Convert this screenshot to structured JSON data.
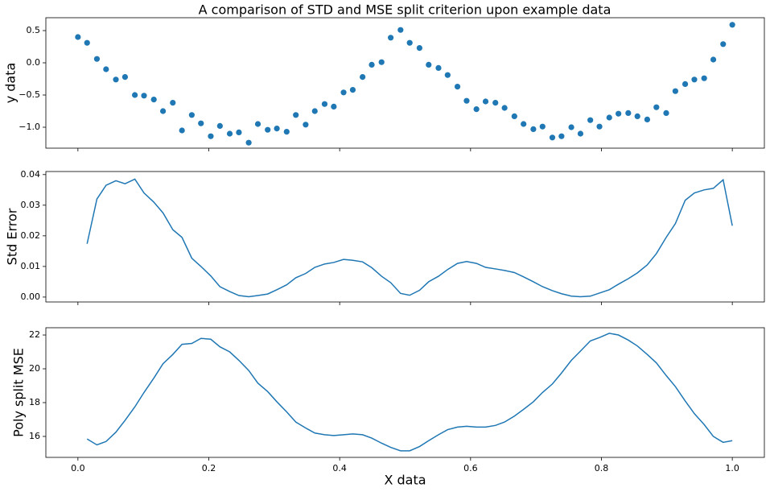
{
  "chart_data": [
    {
      "type": "scatter",
      "title": "A comparison of STD and MSE split criterion upon example data",
      "ylabel": "y data",
      "color": "#1f77b4",
      "x": [
        0,
        0.014,
        0.029,
        0.043,
        0.058,
        0.072,
        0.087,
        0.101,
        0.116,
        0.13,
        0.145,
        0.159,
        0.174,
        0.188,
        0.203,
        0.217,
        0.232,
        0.246,
        0.261,
        0.275,
        0.29,
        0.304,
        0.319,
        0.333,
        0.348,
        0.362,
        0.377,
        0.391,
        0.406,
        0.42,
        0.435,
        0.449,
        0.464,
        0.478,
        0.493,
        0.507,
        0.522,
        0.536,
        0.551,
        0.565,
        0.58,
        0.594,
        0.609,
        0.623,
        0.638,
        0.652,
        0.667,
        0.681,
        0.696,
        0.71,
        0.725,
        0.739,
        0.754,
        0.768,
        0.783,
        0.797,
        0.812,
        0.826,
        0.841,
        0.855,
        0.87,
        0.884,
        0.899,
        0.913,
        0.928,
        0.942,
        0.957,
        0.971,
        0.986,
        1.0
      ],
      "values": [
        0.4,
        0.31,
        0.06,
        -0.1,
        -0.26,
        -0.22,
        -0.5,
        -0.51,
        -0.57,
        -0.75,
        -0.62,
        -1.05,
        -0.81,
        -0.94,
        -1.14,
        -0.98,
        -1.1,
        -1.08,
        -1.24,
        -0.95,
        -1.04,
        -1.02,
        -1.07,
        -0.81,
        -0.96,
        -0.75,
        -0.64,
        -0.68,
        -0.46,
        -0.42,
        -0.22,
        -0.03,
        0.01,
        0.39,
        0.51,
        0.31,
        0.23,
        -0.03,
        -0.08,
        -0.19,
        -0.37,
        -0.59,
        -0.72,
        -0.6,
        -0.62,
        -0.7,
        -0.83,
        -0.95,
        -1.03,
        -0.99,
        -1.16,
        -1.14,
        -1.0,
        -1.1,
        -0.89,
        -0.99,
        -0.85,
        -0.79,
        -0.78,
        -0.83,
        -0.88,
        -0.69,
        -0.78,
        -0.44,
        -0.33,
        -0.26,
        -0.24,
        0.05,
        0.29,
        0.59
      ],
      "xlim": [
        -0.049,
        1.049
      ],
      "ylim": [
        -1.325,
        0.7
      ],
      "yticks": [
        {
          "value": -1.0,
          "label": "−1.0"
        },
        {
          "value": -0.5,
          "label": "−0.5"
        },
        {
          "value": 0,
          "label": "0.0"
        },
        0.5
      ]
    },
    {
      "type": "line",
      "ylabel": "Std Error",
      "color": "#1f77b4",
      "x": [
        0.014,
        0.029,
        0.043,
        0.058,
        0.072,
        0.087,
        0.101,
        0.116,
        0.13,
        0.145,
        0.159,
        0.174,
        0.188,
        0.203,
        0.217,
        0.232,
        0.246,
        0.261,
        0.275,
        0.29,
        0.304,
        0.319,
        0.333,
        0.348,
        0.362,
        0.377,
        0.391,
        0.406,
        0.42,
        0.435,
        0.449,
        0.464,
        0.478,
        0.493,
        0.507,
        0.522,
        0.536,
        0.551,
        0.565,
        0.58,
        0.594,
        0.609,
        0.623,
        0.638,
        0.652,
        0.667,
        0.681,
        0.696,
        0.71,
        0.725,
        0.739,
        0.754,
        0.768,
        0.783,
        0.797,
        0.812,
        0.826,
        0.841,
        0.855,
        0.87,
        0.884,
        0.899,
        0.913,
        0.928,
        0.942,
        0.957,
        0.971,
        0.986,
        1.0
      ],
      "values": [
        0.0174,
        0.032,
        0.0365,
        0.038,
        0.037,
        0.0385,
        0.034,
        0.031,
        0.0275,
        0.022,
        0.0195,
        0.0127,
        0.01,
        0.0069,
        0.0034,
        0.0018,
        0.0005,
        0.0001,
        0.0005,
        0.001,
        0.0024,
        0.004,
        0.0063,
        0.0077,
        0.0097,
        0.0108,
        0.0113,
        0.0123,
        0.012,
        0.0115,
        0.0096,
        0.0068,
        0.0047,
        0.0012,
        0.0006,
        0.0022,
        0.005,
        0.0068,
        0.009,
        0.011,
        0.0116,
        0.011,
        0.0097,
        0.0092,
        0.0087,
        0.008,
        0.0066,
        0.005,
        0.0034,
        0.0021,
        0.0011,
        0.0003,
        0.0001,
        0.0003,
        0.0013,
        0.0024,
        0.0042,
        0.006,
        0.0079,
        0.0105,
        0.0142,
        0.0195,
        0.024,
        0.0316,
        0.034,
        0.035,
        0.0355,
        0.0383,
        0.0233
      ],
      "xlim": [
        -0.049,
        1.049
      ],
      "ylim": [
        -0.0016,
        0.041
      ],
      "yticks": [
        {
          "value": 0,
          "label": "0.00"
        },
        0.01,
        0.02,
        0.03,
        0.04
      ]
    },
    {
      "type": "line",
      "ylabel": "Poly split MSE",
      "xlabel": "X data",
      "color": "#1f77b4",
      "x": [
        0.014,
        0.029,
        0.043,
        0.058,
        0.072,
        0.087,
        0.101,
        0.116,
        0.13,
        0.145,
        0.159,
        0.174,
        0.188,
        0.203,
        0.217,
        0.232,
        0.246,
        0.261,
        0.275,
        0.29,
        0.304,
        0.319,
        0.333,
        0.348,
        0.362,
        0.377,
        0.391,
        0.406,
        0.42,
        0.435,
        0.449,
        0.464,
        0.478,
        0.493,
        0.507,
        0.522,
        0.536,
        0.551,
        0.565,
        0.58,
        0.594,
        0.609,
        0.623,
        0.638,
        0.652,
        0.667,
        0.681,
        0.696,
        0.71,
        0.725,
        0.739,
        0.754,
        0.768,
        0.783,
        0.797,
        0.812,
        0.826,
        0.841,
        0.855,
        0.87,
        0.884,
        0.899,
        0.913,
        0.928,
        0.942,
        0.957,
        0.971,
        0.986,
        1.0
      ],
      "values": [
        15.85,
        15.5,
        15.7,
        16.25,
        16.95,
        17.75,
        18.6,
        19.45,
        20.3,
        20.85,
        21.45,
        21.5,
        21.8,
        21.75,
        21.3,
        21.0,
        20.5,
        19.9,
        19.15,
        18.65,
        18.05,
        17.45,
        16.85,
        16.5,
        16.2,
        16.1,
        16.05,
        16.1,
        16.15,
        16.1,
        15.9,
        15.6,
        15.35,
        15.15,
        15.15,
        15.4,
        15.75,
        16.1,
        16.4,
        16.55,
        16.6,
        16.55,
        16.55,
        16.65,
        16.85,
        17.2,
        17.6,
        18.05,
        18.6,
        19.1,
        19.75,
        20.5,
        21.05,
        21.65,
        21.85,
        22.1,
        22.0,
        21.7,
        21.35,
        20.85,
        20.35,
        19.6,
        18.95,
        18.1,
        17.35,
        16.7,
        16.0,
        15.65,
        15.75
      ],
      "xlim": [
        -0.049,
        1.049
      ],
      "ylim": [
        14.76,
        22.43
      ],
      "yticks": [
        16,
        18,
        20,
        22
      ],
      "xticks": [
        {
          "value": 0,
          "label": "0.0"
        },
        0.2,
        0.4,
        0.6,
        0.8,
        {
          "value": 1,
          "label": "1.0"
        }
      ]
    }
  ]
}
